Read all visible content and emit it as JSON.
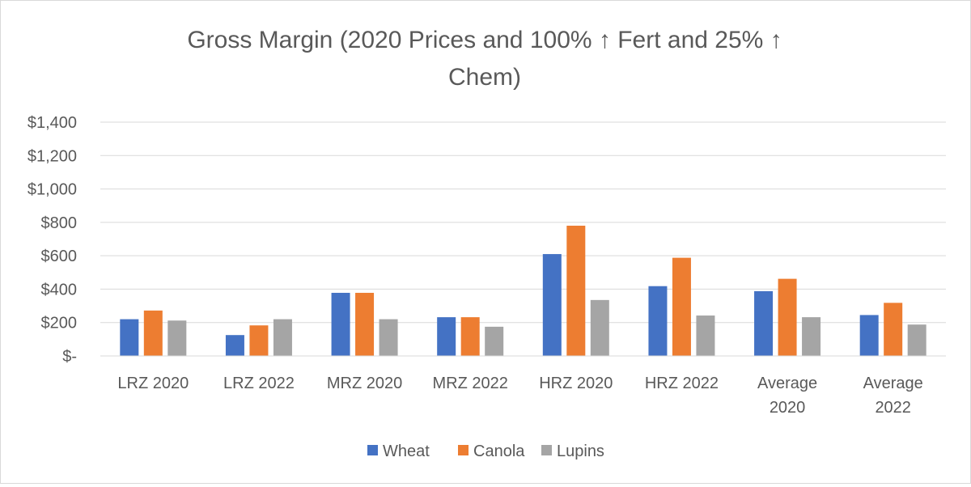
{
  "chart_data": {
    "type": "bar",
    "title_lines": [
      "Gross Margin (2020 Prices and 100% ↑ Fert and 25% ↑",
      "Chem)"
    ],
    "xlabel": "",
    "ylabel": "",
    "categories": [
      [
        "LRZ 2020"
      ],
      [
        "LRZ 2022"
      ],
      [
        "MRZ 2020"
      ],
      [
        "MRZ 2022"
      ],
      [
        "HRZ 2020"
      ],
      [
        "HRZ 2022"
      ],
      [
        "Average",
        "2020"
      ],
      [
        "Average",
        "2022"
      ]
    ],
    "series": [
      {
        "name": "Wheat",
        "color": "#4472c4",
        "values": [
          220,
          125,
          378,
          232,
          610,
          418,
          388,
          245
        ]
      },
      {
        "name": "Canola",
        "color": "#ed7d31",
        "values": [
          272,
          183,
          378,
          232,
          780,
          588,
          462,
          318
        ]
      },
      {
        "name": "Lupins",
        "color": "#a5a5a5",
        "values": [
          212,
          220,
          220,
          175,
          335,
          242,
          232,
          188
        ]
      }
    ],
    "ylim": [
      0,
      1400
    ],
    "yticks": [
      0,
      200,
      400,
      600,
      800,
      1000,
      1200,
      1400
    ],
    "ytick_labels": [
      "$-",
      "$200",
      "$400",
      "$600",
      "$800",
      "$1,000",
      "$1,200",
      "$1,400"
    ],
    "grid": true,
    "legend_position": "bottom"
  }
}
